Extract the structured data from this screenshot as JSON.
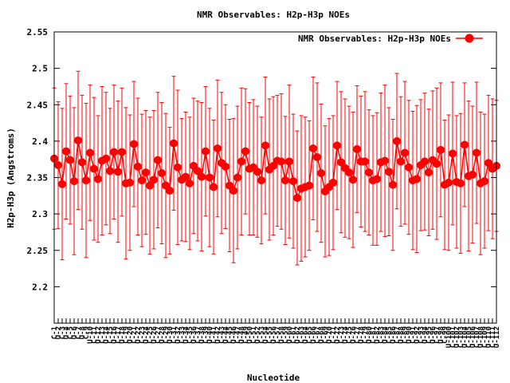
{
  "chart_data": {
    "type": "line",
    "title": "NMR Observables: H2p-H3p NOEs",
    "xlabel": "Nucleotide",
    "ylabel": "H2p-H3p (Angstroms)",
    "ylim": [
      2.15,
      2.55
    ],
    "yticks": [
      2.2,
      2.25,
      2.3,
      2.35,
      2.4,
      2.45,
      2.5,
      2.55
    ],
    "ytick_labels": [
      "2.2",
      "2.25",
      "2.3",
      "2.35",
      "2.4",
      "2.45",
      "2.5",
      "2.55"
    ],
    "x_tick_labels": [
      "C-1",
      "U-2",
      "C-3",
      "U-4",
      "C-5",
      "U-6",
      "C-7",
      "U-8",
      "C-9",
      "U-10",
      "C-11",
      "U-12",
      "C-13",
      "U-14",
      "C-15",
      "U-16",
      "C-17",
      "U-18",
      "C-19",
      "U-20",
      "C-21",
      "U-22",
      "C-23",
      "U-24",
      "C-25",
      "U-26",
      "C-27",
      "U-28",
      "C-29",
      "U-30",
      "C-31",
      "U-32",
      "C-33",
      "U-34",
      "C-35",
      "U-36",
      "C-37",
      "U-38",
      "C-39",
      "U-40",
      "C-41",
      "U-42",
      "C-43",
      "U-44",
      "C-45",
      "U-46",
      "C-47",
      "U-48",
      "C-49",
      "U-50",
      "C-51",
      "U-52",
      "C-53",
      "U-54",
      "C-55",
      "U-56",
      "C-57",
      "U-58",
      "C-59",
      "U-60",
      "C-61",
      "U-62",
      "C-63",
      "U-64",
      "C-65",
      "U-66",
      "C-67",
      "U-68",
      "C-69",
      "U-70",
      "C-71",
      "U-72",
      "C-73",
      "U-74",
      "C-75",
      "U-76",
      "C-77",
      "U-78",
      "C-79",
      "U-80",
      "C-81",
      "U-82",
      "C-83",
      "U-84",
      "C-85",
      "U-86",
      "C-87",
      "U-88",
      "C-89",
      "U-90",
      "C-91",
      "U-92",
      "C-93",
      "U-94",
      "C-95",
      "U-96",
      "C-97",
      "U-98",
      "C-99",
      "U-100",
      "C-101",
      "U-102",
      "C-103",
      "U-104",
      "C-105",
      "U-106",
      "C-107",
      "U-108",
      "C-109",
      "U-110",
      "C-111",
      "U-112"
    ],
    "grid": false,
    "legend_position": "top-right",
    "series": [
      {
        "name": "NMR Observables: H2p-H3p NOEs",
        "color": "#ff0000",
        "values": [
          2.376,
          2.367,
          2.341,
          2.386,
          2.374,
          2.345,
          2.401,
          2.371,
          2.346,
          2.384,
          2.362,
          2.348,
          2.373,
          2.376,
          2.359,
          2.385,
          2.358,
          2.385,
          2.342,
          2.343,
          2.396,
          2.365,
          2.346,
          2.357,
          2.339,
          2.347,
          2.374,
          2.356,
          2.339,
          2.332,
          2.397,
          2.364,
          2.347,
          2.351,
          2.342,
          2.366,
          2.359,
          2.351,
          2.386,
          2.35,
          2.337,
          2.39,
          2.37,
          2.365,
          2.339,
          2.332,
          2.35,
          2.372,
          2.386,
          2.362,
          2.364,
          2.358,
          2.346,
          2.394,
          2.361,
          2.366,
          2.373,
          2.372,
          2.346,
          2.372,
          2.345,
          2.322,
          2.335,
          2.337,
          2.339,
          2.39,
          2.378,
          2.356,
          2.331,
          2.337,
          2.343,
          2.394,
          2.371,
          2.363,
          2.357,
          2.347,
          2.389,
          2.372,
          2.372,
          2.357,
          2.346,
          2.348,
          2.371,
          2.373,
          2.358,
          2.34,
          2.4,
          2.372,
          2.384,
          2.364,
          2.346,
          2.348,
          2.367,
          2.372,
          2.357,
          2.374,
          2.369,
          2.388,
          2.34,
          2.343,
          2.383,
          2.344,
          2.342,
          2.395,
          2.352,
          2.354,
          2.384,
          2.342,
          2.345,
          2.37,
          2.362,
          2.366
        ],
        "errors": [
          0.097,
          0.087,
          0.104,
          0.093,
          0.088,
          0.101,
          0.095,
          0.092,
          0.106,
          0.093,
          0.098,
          0.087,
          0.102,
          0.091,
          0.086,
          0.092,
          0.097,
          0.088,
          0.104,
          0.093,
          0.086,
          0.094,
          0.091,
          0.085,
          0.094,
          0.095,
          0.093,
          0.097,
          0.099,
          0.087,
          0.092,
          0.106,
          0.084,
          0.089,
          0.091,
          0.093,
          0.096,
          0.102,
          0.089,
          0.095,
          0.092,
          0.094,
          0.097,
          0.085,
          0.091,
          0.099,
          0.098,
          0.101,
          0.086,
          0.091,
          0.093,
          0.09,
          0.087,
          0.094,
          0.097,
          0.095,
          0.09,
          0.093,
          0.088,
          0.105,
          0.092,
          0.092,
          0.1,
          0.096,
          0.089,
          0.098,
          0.102,
          0.095,
          0.09,
          0.094,
          0.092,
          0.088,
          0.097,
          0.095,
          0.091,
          0.093,
          0.087,
          0.09,
          0.096,
          0.086,
          0.089,
          0.091,
          0.095,
          0.104,
          0.088,
          0.09,
          0.093,
          0.089,
          0.098,
          0.092,
          0.095,
          0.101,
          0.09,
          0.094,
          0.087,
          0.095,
          0.104,
          0.092,
          0.089,
          0.093,
          0.098,
          0.091,
          0.096,
          0.085,
          0.103,
          0.094,
          0.097,
          0.098,
          0.092,
          0.093,
          0.096,
          0.09
        ]
      }
    ]
  }
}
